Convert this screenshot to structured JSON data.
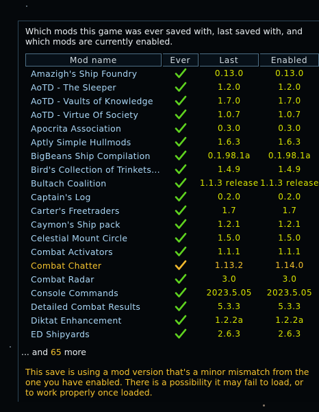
{
  "intro_text": "Which mods this game was ever saved with, last saved with, and which mods are currently enabled.",
  "columns": {
    "name": "Mod name",
    "ever": "Ever",
    "last": "Last",
    "enabled": "Enabled"
  },
  "colors": {
    "check_ok": "#5fd21f",
    "check_mismatch": "#f2b92e",
    "version": "#d6e200",
    "mismatch_text": "#f2c12e",
    "mod_name": "#a9d6f5"
  },
  "mods": [
    {
      "name": "Amazigh's Ship Foundry",
      "ever": "check-icon",
      "last": "0.13.0",
      "enabled": "0.13.0",
      "mismatch": false
    },
    {
      "name": "AoTD - The Sleeper",
      "ever": "check-icon",
      "last": "1.2.0",
      "enabled": "1.2.0",
      "mismatch": false
    },
    {
      "name": "AoTD - Vaults of Knowledge",
      "ever": "check-icon",
      "last": "1.7.0",
      "enabled": "1.7.0",
      "mismatch": false
    },
    {
      "name": "AoTD - Virtue Of Society",
      "ever": "check-icon",
      "last": "1.0.7",
      "enabled": "1.0.7",
      "mismatch": false
    },
    {
      "name": "Apocrita Association",
      "ever": "check-icon",
      "last": "0.3.0",
      "enabled": "0.3.0",
      "mismatch": false
    },
    {
      "name": "Aptly Simple Hullmods",
      "ever": "check-icon",
      "last": "1.6.3",
      "enabled": "1.6.3",
      "mismatch": false
    },
    {
      "name": "BigBeans Ship Compilation",
      "ever": "check-icon",
      "last": "0.1.98.1a",
      "enabled": "0.1.98.1a",
      "mismatch": false
    },
    {
      "name": "Bird's Collection of Trinkets...",
      "ever": "check-icon",
      "last": "1.4.9",
      "enabled": "1.4.9",
      "mismatch": false
    },
    {
      "name": "Bultach Coalition",
      "ever": "check-icon",
      "last": "1.1.3 release",
      "enabled": "1.1.3 release",
      "mismatch": false
    },
    {
      "name": "Captain's Log",
      "ever": "check-icon",
      "last": "0.2.0",
      "enabled": "0.2.0",
      "mismatch": false
    },
    {
      "name": "Carter's Freetraders",
      "ever": "check-icon",
      "last": "1.7",
      "enabled": "1.7",
      "mismatch": false
    },
    {
      "name": "Caymon's Ship pack",
      "ever": "check-icon",
      "last": "1.2.1",
      "enabled": "1.2.1",
      "mismatch": false
    },
    {
      "name": "Celestial Mount Circle",
      "ever": "check-icon",
      "last": "1.5.0",
      "enabled": "1.5.0",
      "mismatch": false
    },
    {
      "name": "Combat Activators",
      "ever": "check-icon",
      "last": "1.1.1",
      "enabled": "1.1.1",
      "mismatch": false
    },
    {
      "name": "Combat Chatter",
      "ever": "check-icon",
      "last": "1.13.2",
      "enabled": "1.14.0",
      "mismatch": true
    },
    {
      "name": "Combat Radar",
      "ever": "check-icon",
      "last": "3.0",
      "enabled": "3.0",
      "mismatch": false
    },
    {
      "name": "Console Commands",
      "ever": "check-icon",
      "last": "2023.5.05",
      "enabled": "2023.5.05",
      "mismatch": false
    },
    {
      "name": "Detailed Combat Results",
      "ever": "check-icon",
      "last": "5.3.3",
      "enabled": "5.3.3",
      "mismatch": false
    },
    {
      "name": "Diktat Enhancement",
      "ever": "check-icon",
      "last": "1.2.2a",
      "enabled": "1.2.2a",
      "mismatch": false
    },
    {
      "name": "ED Shipyards",
      "ever": "check-icon",
      "last": "2.6.3",
      "enabled": "2.6.3",
      "mismatch": false
    }
  ],
  "more": {
    "prefix": "... and",
    "count": "65",
    "suffix": "more"
  },
  "warning_text": "This save is using a mod version that's a minor mismatch from the one you have enabled. There is a possibility it may fail to load, or to work properly once loaded."
}
